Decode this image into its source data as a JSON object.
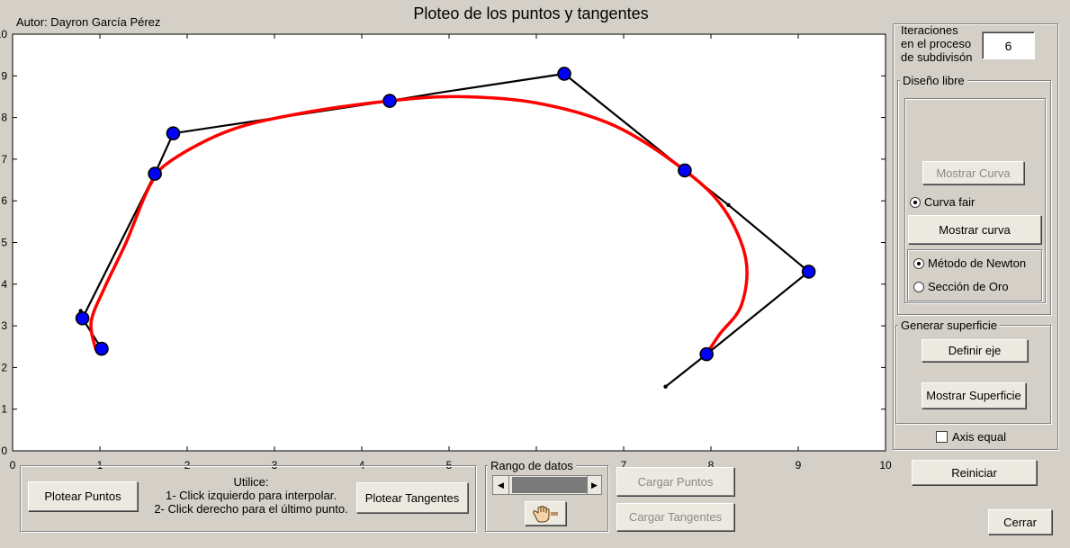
{
  "window": {
    "title": "Ploteo de los puntos y tangentes",
    "author": "Autor: Dayron García Pérez"
  },
  "chart_data": {
    "type": "line",
    "xlim": [
      0,
      10
    ],
    "ylim": [
      0,
      10
    ],
    "x_ticks": [
      "0",
      "1",
      "2",
      "3",
      "4",
      "5",
      "6",
      "7",
      "8",
      "9",
      "10"
    ],
    "y_ticks": [
      "0",
      "1",
      "2",
      "3",
      "4",
      "5",
      "6",
      "7",
      "8",
      "9",
      "10"
    ],
    "grid": false,
    "series": [
      {
        "kind": "control-polygon",
        "color": "#000000",
        "points": [
          [
            0.78,
            3.36
          ],
          [
            0.8,
            3.18
          ],
          [
            1.02,
            2.45
          ],
          [
            0.8,
            3.18
          ],
          [
            1.63,
            6.65
          ],
          [
            1.84,
            7.62
          ],
          [
            4.32,
            8.4
          ],
          [
            4.9,
            8.6
          ],
          [
            6.32,
            9.05
          ],
          [
            7.7,
            6.73
          ],
          [
            8.2,
            5.9
          ],
          [
            9.12,
            4.3
          ],
          [
            7.95,
            2.32
          ],
          [
            7.48,
            1.54
          ]
        ]
      },
      {
        "kind": "interpolated-curve",
        "color": "#ff0000",
        "points": [
          [
            0.95,
            2.45
          ],
          [
            0.9,
            3.1
          ],
          [
            1.05,
            3.9
          ],
          [
            1.3,
            5.0
          ],
          [
            1.58,
            6.4
          ],
          [
            1.84,
            7.0
          ],
          [
            2.5,
            7.7
          ],
          [
            3.3,
            8.1
          ],
          [
            4.32,
            8.4
          ],
          [
            5.1,
            8.5
          ],
          [
            6.0,
            8.35
          ],
          [
            6.9,
            7.8
          ],
          [
            7.7,
            6.73
          ],
          [
            8.15,
            5.8
          ],
          [
            8.4,
            4.6
          ],
          [
            8.35,
            3.5
          ],
          [
            8.1,
            2.8
          ],
          [
            7.95,
            2.32
          ]
        ]
      },
      {
        "kind": "points",
        "color": "#0000ff",
        "points": [
          [
            1.02,
            2.45
          ],
          [
            0.8,
            3.18
          ],
          [
            1.63,
            6.65
          ],
          [
            1.84,
            7.62
          ],
          [
            4.32,
            8.4
          ],
          [
            6.32,
            9.05
          ],
          [
            7.7,
            6.73
          ],
          [
            9.12,
            4.3
          ],
          [
            7.95,
            2.32
          ]
        ]
      }
    ]
  },
  "controls": {
    "iterations_label_1": "Iteraciones",
    "iterations_label_2": "en el proceso",
    "iterations_label_3": "de subdivisón",
    "iterations_value": "6",
    "free_design_label": "Diseño libre",
    "show_curve_disabled": "Mostrar Curva",
    "fair_curve_label": "Curva fair",
    "show_curve": "Mostrar curva",
    "newton_label": "Método de Newton",
    "golden_label": "Sección de Oro",
    "surface_label": "Generar superficie",
    "define_axis": "Definir eje",
    "show_surface": "Mostrar Superficie",
    "axis_equal": "Axis equal",
    "reset": "Reiniciar",
    "close": "Cerrar"
  },
  "bottom": {
    "plot_points": "Plotear Puntos",
    "use_title": "Utilice:",
    "use_line1": "1- Click izquierdo para interpolar.",
    "use_line2": "2- Click derecho para el último punto.",
    "plot_tangents": "Plotear Tangentes",
    "data_range": "Rango de datos",
    "load_points": "Cargar Puntos",
    "load_tangents": "Cargar Tangentes"
  }
}
